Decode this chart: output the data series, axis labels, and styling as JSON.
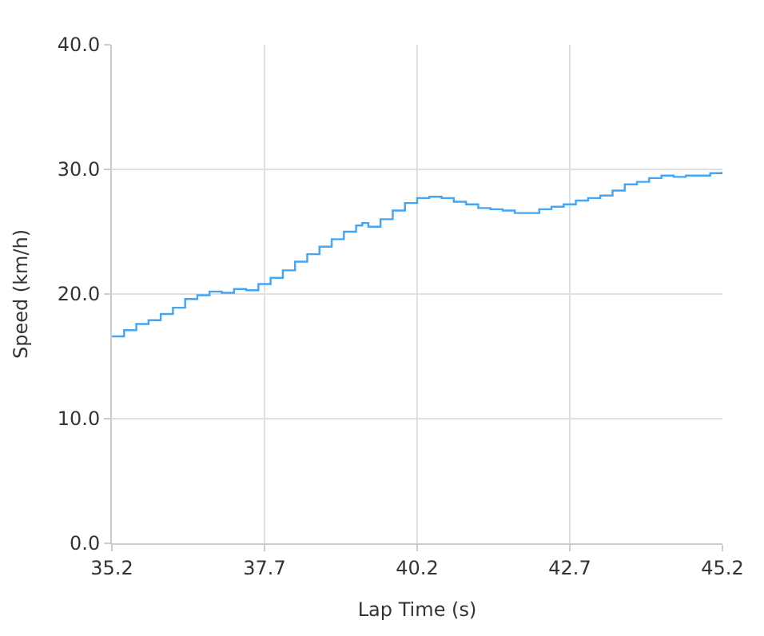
{
  "chart_data": {
    "type": "step",
    "xlabel": "Lap Time (s)",
    "ylabel": "Speed (km/h)",
    "x": [
      35.2,
      35.4,
      35.6,
      35.8,
      36.0,
      36.2,
      36.4,
      36.6,
      36.8,
      37.0,
      37.2,
      37.4,
      37.6,
      37.8,
      38.0,
      38.2,
      38.4,
      38.6,
      38.8,
      39.0,
      39.2,
      39.3,
      39.4,
      39.6,
      39.8,
      40.0,
      40.2,
      40.4,
      40.6,
      40.8,
      41.0,
      41.2,
      41.4,
      41.6,
      41.8,
      42.0,
      42.2,
      42.4,
      42.6,
      42.8,
      43.0,
      43.2,
      43.4,
      43.6,
      43.8,
      44.0,
      44.2,
      44.4,
      44.6,
      44.8,
      45.0,
      45.2
    ],
    "series": [
      {
        "color": "#42a5f5",
        "values": [
          16.6,
          17.1,
          17.6,
          17.9,
          18.4,
          18.9,
          19.6,
          19.9,
          20.2,
          20.1,
          20.4,
          20.3,
          20.8,
          21.3,
          21.9,
          22.6,
          23.2,
          23.8,
          24.4,
          25.0,
          25.5,
          25.7,
          25.4,
          26.0,
          26.7,
          27.3,
          27.7,
          27.8,
          27.7,
          27.4,
          27.2,
          26.9,
          26.8,
          26.7,
          26.5,
          26.5,
          26.8,
          27.0,
          27.2,
          27.5,
          27.7,
          27.9,
          28.3,
          28.8,
          29.0,
          29.3,
          29.5,
          29.4,
          29.5,
          29.5,
          29.7,
          29.8
        ]
      }
    ],
    "xlim": [
      35.2,
      45.2
    ],
    "xticks": [
      35.2,
      37.7,
      40.2,
      42.7,
      45.2
    ],
    "ylim": [
      0,
      40
    ],
    "yticks": [
      {
        "value": 0,
        "label": "0.0"
      },
      {
        "value": 10,
        "label": "10.0"
      },
      {
        "value": 20,
        "label": "20.0"
      },
      {
        "value": 30,
        "label": "30.0"
      },
      {
        "value": 40,
        "label": "40.0"
      }
    ],
    "grid": true,
    "legend": false,
    "marker": "none",
    "line_style": "solid"
  }
}
